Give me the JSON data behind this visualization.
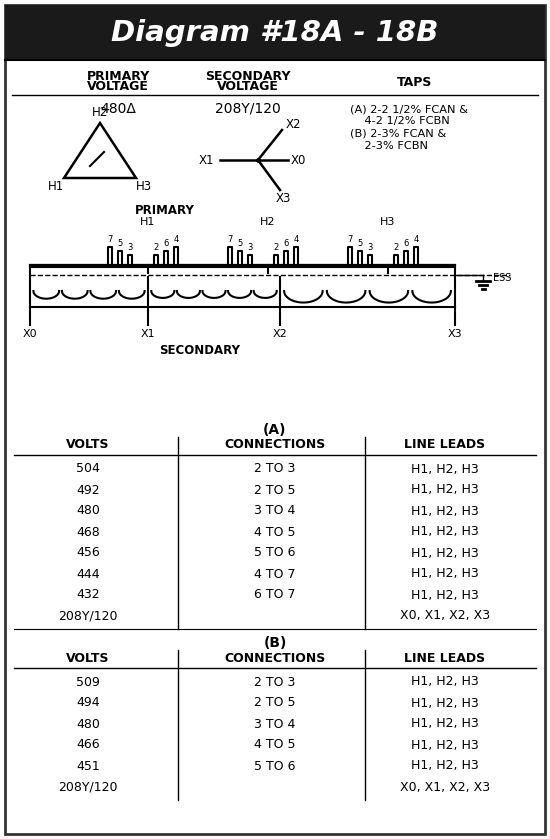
{
  "title": "Diagram #18A - 18B",
  "title_bg": "#1a1a1a",
  "title_color": "#ffffff",
  "primary_voltage": "480Δ",
  "secondary_voltage": "208Y/120",
  "taps_lines": [
    "(A) 2-2 1/2% FCAN &",
    "    4-2 1/2% FCBN",
    "(B) 2-3% FCAN &",
    "    2-3% FCBN"
  ],
  "table_A_label": "(A)",
  "table_B_label": "(B)",
  "col_headers": [
    "VOLTS",
    "CONNECTIONS",
    "LINE LEADS"
  ],
  "table_A": [
    [
      "504",
      "2 TO 3",
      "H1, H2, H3"
    ],
    [
      "492",
      "2 TO 5",
      "H1, H2, H3"
    ],
    [
      "480",
      "3 TO 4",
      "H1, H2, H3"
    ],
    [
      "468",
      "4 TO 5",
      "H1, H2, H3"
    ],
    [
      "456",
      "5 TO 6",
      "H1, H2, H3"
    ],
    [
      "444",
      "4 TO 7",
      "H1, H2, H3"
    ],
    [
      "432",
      "6 TO 7",
      "H1, H2, H3"
    ],
    [
      "208Y/120",
      "",
      "X0, X1, X2, X3"
    ]
  ],
  "table_B": [
    [
      "509",
      "2 TO 3",
      "H1, H2, H3"
    ],
    [
      "494",
      "2 TO 5",
      "H1, H2, H3"
    ],
    [
      "480",
      "3 TO 4",
      "H1, H2, H3"
    ],
    [
      "466",
      "4 TO 5",
      "H1, H2, H3"
    ],
    [
      "451",
      "5 TO 6",
      "H1, H2, H3"
    ],
    [
      "208Y/120",
      "",
      "X0, X1, X2, X3"
    ]
  ],
  "bg_color": "#ffffff",
  "line_color": "#000000",
  "border_color": "#333333"
}
